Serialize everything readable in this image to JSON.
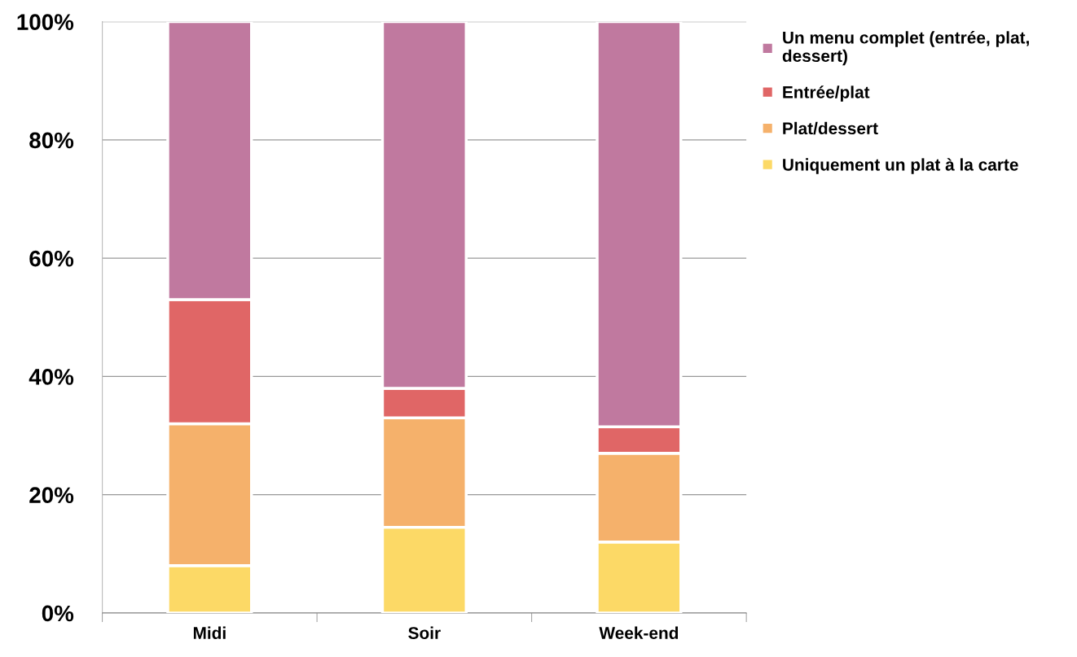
{
  "chart_data": {
    "type": "bar",
    "stacked": true,
    "categories": [
      "Midi",
      "Soir",
      "Week-end"
    ],
    "series": [
      {
        "name": "Uniquement un plat à la carte",
        "color": "#fcd966",
        "values": [
          8,
          14.5,
          12
        ]
      },
      {
        "name": "Plat/dessert",
        "color": "#f5b16b",
        "values": [
          24,
          18.5,
          15
        ]
      },
      {
        "name": "Entrée/plat",
        "color": "#e06666",
        "values": [
          21,
          5,
          4.5
        ]
      },
      {
        "name": "Un menu complet (entrée, plat,\ndessert)",
        "color": "#c0799f",
        "values": [
          47,
          62,
          68.5
        ]
      }
    ],
    "ylim": [
      0,
      100
    ],
    "yticks": [
      {
        "value": 0,
        "label": "0%"
      },
      {
        "value": 20,
        "label": "20%"
      },
      {
        "value": 40,
        "label": "40%"
      },
      {
        "value": 60,
        "label": "60%"
      },
      {
        "value": 80,
        "label": "80%"
      },
      {
        "value": 100,
        "label": "100%"
      }
    ],
    "grid": "y",
    "legend": "top right"
  }
}
